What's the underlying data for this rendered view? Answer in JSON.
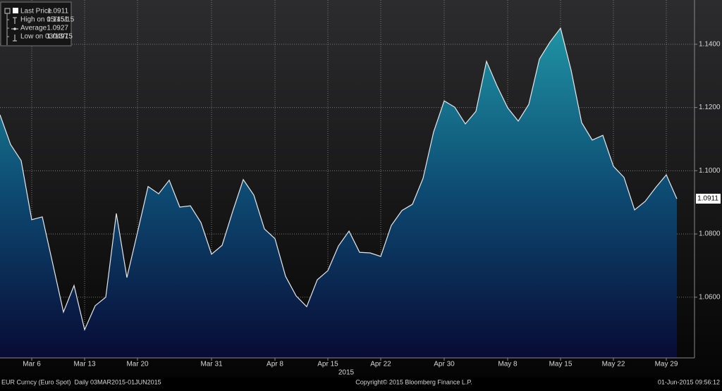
{
  "chart_data": {
    "type": "area",
    "legend": [
      {
        "label": "Last Price",
        "value": "1.0911"
      },
      {
        "label": "High on 05/15/15",
        "value": "1.1451"
      },
      {
        "label": "Average",
        "value": "1.0927"
      },
      {
        "label": "Low on 03/13/15",
        "value": "1.0497"
      }
    ],
    "categories": [
      null,
      null,
      null,
      "Mar 6",
      null,
      null,
      null,
      null,
      "Mar 13",
      null,
      null,
      null,
      null,
      "Mar 20",
      null,
      null,
      null,
      null,
      null,
      null,
      "Mar 31",
      null,
      null,
      null,
      null,
      null,
      "Apr 8",
      null,
      null,
      null,
      null,
      "Apr 15",
      null,
      null,
      null,
      null,
      "Apr 22",
      null,
      null,
      null,
      null,
      null,
      "Apr 30",
      null,
      null,
      null,
      null,
      null,
      "May 8",
      null,
      null,
      null,
      null,
      "May 15",
      null,
      null,
      null,
      null,
      "May 22",
      null,
      null,
      null,
      null,
      "May 29",
      null
    ],
    "x_label": "2015",
    "series": [
      {
        "name": "Last Price",
        "color": "#e8e8e8",
        "values": [
          1.1177,
          1.1083,
          1.1032,
          1.0845,
          1.0854,
          1.0704,
          1.0553,
          1.0637,
          1.0497,
          1.0573,
          1.06,
          1.0865,
          1.0662,
          1.0805,
          1.095,
          1.0927,
          1.097,
          1.0885,
          1.0889,
          1.0836,
          1.0736,
          1.0764,
          1.0871,
          1.0972,
          1.0923,
          1.0816,
          1.0785,
          1.0666,
          1.0604,
          1.057,
          1.0655,
          1.0684,
          1.0762,
          1.0809,
          1.0742,
          1.074,
          1.0729,
          1.0827,
          1.0874,
          1.0894,
          1.0976,
          1.1123,
          1.1221,
          1.1201,
          1.1148,
          1.1188,
          1.1346,
          1.1268,
          1.1199,
          1.1157,
          1.121,
          1.1353,
          1.1407,
          1.1451,
          1.1318,
          1.1152,
          1.1097,
          1.1112,
          1.1014,
          1.0979,
          1.0876,
          1.0903,
          1.0947,
          1.0987,
          1.0911
        ]
      }
    ],
    "ylim": [
      1.0408,
      1.154
    ],
    "yticks": [
      {
        "value": 1.06,
        "label": "1.0600"
      },
      {
        "value": 1.08,
        "label": "1.0800"
      },
      {
        "value": 1.1,
        "label": "1.1000"
      },
      {
        "value": 1.12,
        "label": "1.1200"
      },
      {
        "value": 1.14,
        "label": "1.1400"
      }
    ],
    "grid": true,
    "footer": [
      "EUR Curncy (Euro Spot)  Daily 03MAR2015-01JUN2015",
      "Copyright© 2015 Bloomberg Finance L.P.",
      "01-Jun-2015 09:56:12"
    ]
  }
}
